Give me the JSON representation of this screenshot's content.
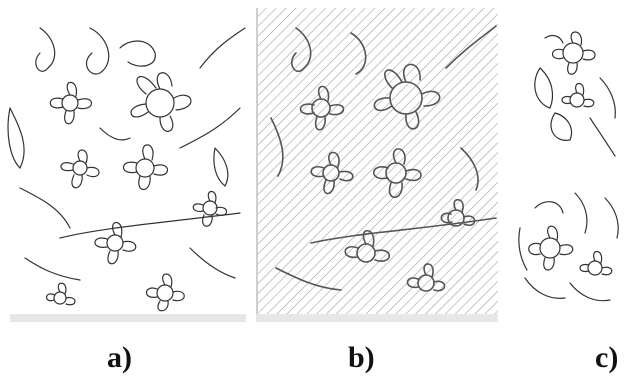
{
  "panels": [
    {
      "id": "a",
      "caption": "a)"
    },
    {
      "id": "b",
      "caption": "b)"
    },
    {
      "id": "c",
      "caption": "c)"
    }
  ]
}
